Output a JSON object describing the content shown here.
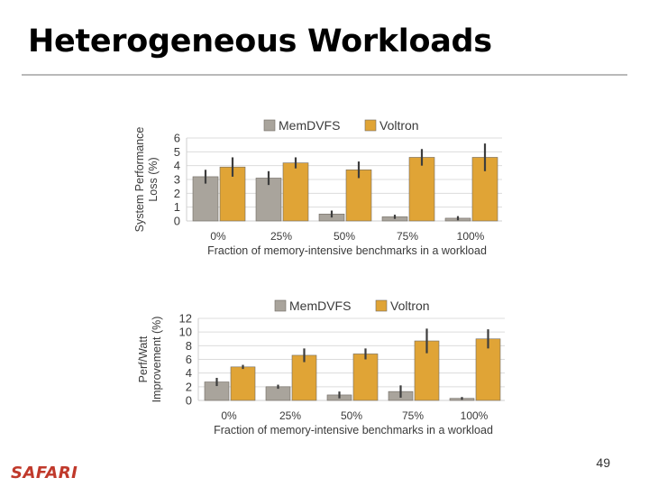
{
  "slide": {
    "title": "Heterogeneous Workloads",
    "page_number": "49",
    "logo_text": "SAFARI"
  },
  "colors": {
    "memdvfs": "#a9a49c",
    "voltron": "#e0a436",
    "error_bar": "#3d3d3d",
    "grid": "#dcdcdc",
    "logo": "#c0392b"
  },
  "chart_data": [
    {
      "type": "bar",
      "categories": [
        "0%",
        "25%",
        "50%",
        "75%",
        "100%"
      ],
      "series": [
        {
          "name": "MemDVFS",
          "values": [
            3.2,
            3.1,
            0.5,
            0.3,
            0.2
          ],
          "error": [
            0.5,
            0.5,
            0.25,
            0.15,
            0.15
          ]
        },
        {
          "name": "Voltron",
          "values": [
            3.9,
            4.2,
            3.7,
            4.6,
            4.6
          ],
          "error": [
            0.7,
            0.4,
            0.6,
            0.6,
            1.0
          ]
        }
      ],
      "title": "",
      "xlabel": "Fraction of memory-intensive benchmarks in a workload",
      "ylabel": [
        "System Performance",
        "Loss (%)"
      ],
      "ylim": [
        0,
        6
      ],
      "yticks": [
        "0",
        "1",
        "2",
        "3",
        "4",
        "5",
        "6"
      ],
      "grid": true,
      "legend": "top-center"
    },
    {
      "type": "bar",
      "categories": [
        "0%",
        "25%",
        "50%",
        "75%",
        "100%"
      ],
      "series": [
        {
          "name": "MemDVFS",
          "values": [
            2.7,
            2.0,
            0.8,
            1.3,
            0.3
          ],
          "error": [
            0.6,
            0.3,
            0.5,
            0.9,
            0.2
          ]
        },
        {
          "name": "Voltron",
          "values": [
            4.9,
            6.6,
            6.8,
            8.7,
            9.0
          ],
          "error": [
            0.3,
            1.0,
            0.8,
            1.8,
            1.4
          ]
        }
      ],
      "title": "",
      "xlabel": "Fraction of memory-intensive benchmarks in a workload",
      "ylabel": [
        "Perf/Watt",
        "Improvement (%)"
      ],
      "ylim": [
        0,
        12
      ],
      "yticks": [
        "0",
        "2",
        "4",
        "6",
        "8",
        "10",
        "12"
      ],
      "grid": true,
      "legend": "top-center"
    }
  ]
}
